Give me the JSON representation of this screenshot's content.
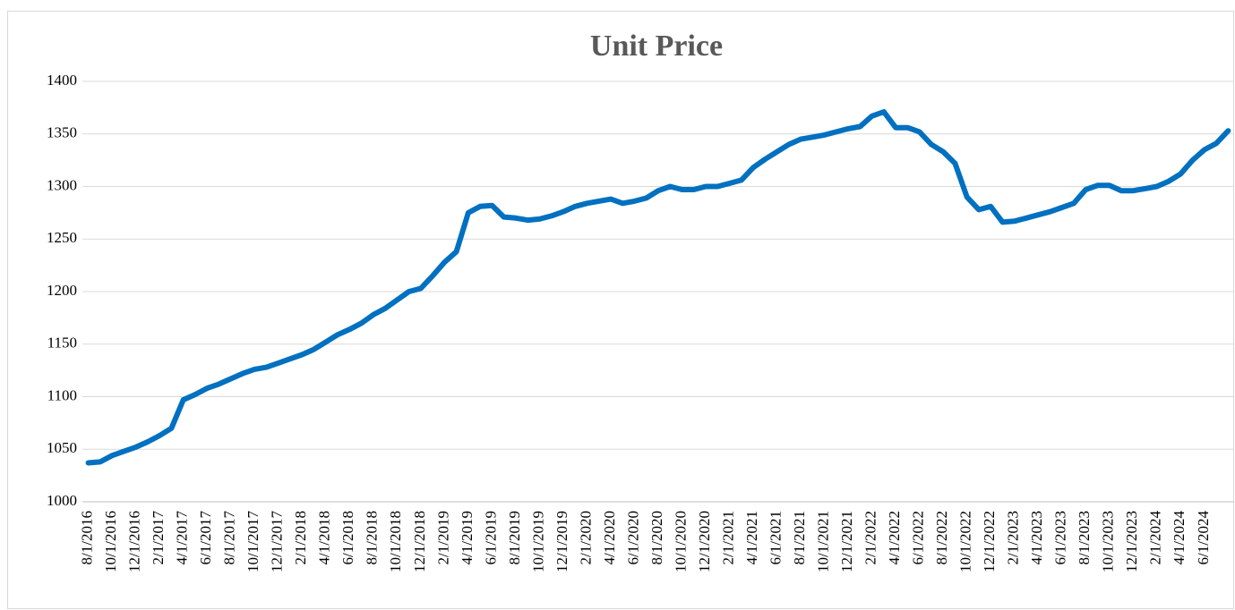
{
  "chart_data": {
    "type": "line",
    "title": "Unit Price",
    "categories": [
      "8/1/2016",
      null,
      "10/1/2016",
      null,
      "12/1/2016",
      null,
      "2/1/2017",
      null,
      "4/1/2017",
      null,
      "6/1/2017",
      null,
      "8/1/2017",
      null,
      "10/1/2017",
      null,
      "12/1/2017",
      null,
      "2/1/2018",
      null,
      "4/1/2018",
      null,
      "6/1/2018",
      null,
      "8/1/2018",
      null,
      "10/1/2018",
      null,
      "12/1/2018",
      null,
      "2/1/2019",
      null,
      "4/1/2019",
      null,
      "6/1/2019",
      null,
      "8/1/2019",
      null,
      "10/1/2019",
      null,
      "12/1/2019",
      null,
      "2/1/2020",
      null,
      "4/1/2020",
      null,
      "6/1/2020",
      null,
      "8/1/2020",
      null,
      "10/1/2020",
      null,
      "12/1/2020",
      null,
      "2/1/2021",
      null,
      "4/1/2021",
      null,
      "6/1/2021",
      null,
      "8/1/2021",
      null,
      "10/1/2021",
      null,
      "12/1/2021",
      null,
      "2/1/2022",
      null,
      "4/1/2022",
      null,
      "6/1/2022",
      null,
      "8/1/2022",
      null,
      "10/1/2022",
      null,
      "12/1/2022",
      null,
      "2/1/2023",
      null,
      "4/1/2023",
      null,
      "6/1/2023",
      null,
      "8/1/2023",
      null,
      "10/1/2023",
      null,
      "12/1/2023",
      null,
      "2/1/2024",
      null,
      "4/1/2024",
      null,
      "6/1/2024",
      null,
      null
    ],
    "series": [
      {
        "name": "Unit Price",
        "color": "#0070c0",
        "values": [
          1037,
          1038,
          1044,
          1048,
          1052,
          1057,
          1063,
          1070,
          1097,
          1102,
          1108,
          1112,
          1117,
          1122,
          1126,
          1128,
          1132,
          1136,
          1140,
          1145,
          1152,
          1159,
          1164,
          1170,
          1178,
          1184,
          1192,
          1200,
          1203,
          1215,
          1228,
          1238,
          1275,
          1281,
          1282,
          1271,
          1270,
          1268,
          1269,
          1272,
          1276,
          1281,
          1284,
          1286,
          1288,
          1284,
          1286,
          1289,
          1296,
          1300,
          1297,
          1297,
          1300,
          1300,
          1303,
          1306,
          1318,
          1326,
          1333,
          1340,
          1345,
          1347,
          1349,
          1352,
          1355,
          1357,
          1367,
          1371,
          1356,
          1356,
          1352,
          1340,
          1333,
          1322,
          1290,
          1278,
          1281,
          1266,
          1267,
          1270,
          1273,
          1276,
          1280,
          1284,
          1297,
          1301,
          1301,
          1296,
          1296,
          1298,
          1300,
          1305,
          1312,
          1325,
          1335,
          1341,
          1353
        ]
      }
    ],
    "ylim": [
      1000,
      1400
    ],
    "yticks": [
      1000,
      1050,
      1100,
      1150,
      1200,
      1250,
      1300,
      1350,
      1400
    ],
    "grid": true
  }
}
